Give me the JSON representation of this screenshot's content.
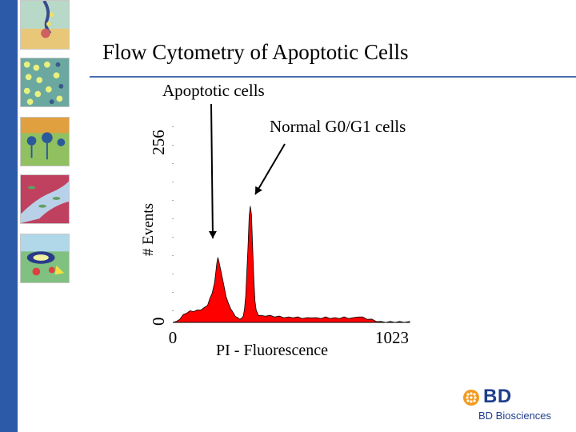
{
  "slide": {
    "title": "Flow Cytometry of Apoptotic Cells"
  },
  "annotations": {
    "apoptotic": "Apoptotic cells",
    "normal": "Normal G0/G1 cells"
  },
  "brand": {
    "name": "BD",
    "subtitle": "BD Biosciences",
    "color": "#1f3e8c"
  },
  "colors": {
    "sidebar": "#2d5aa8",
    "fill": "#ff0000",
    "rule": "#4a6fb0"
  },
  "chart_data": {
    "type": "area",
    "title": "",
    "xlabel": "PI - Fluorescence",
    "ylabel": "# Events",
    "xlim": [
      0,
      1023
    ],
    "ylim": [
      0,
      256
    ],
    "x_ticks": [
      "0",
      "1023"
    ],
    "y_ticks": [
      "0",
      "256"
    ],
    "grid": false,
    "series": [
      {
        "values_x": [
          0,
          15,
          30,
          45,
          60,
          75,
          90,
          105,
          120,
          135,
          150,
          160,
          170,
          180,
          185,
          190,
          195,
          200,
          210,
          220,
          230,
          240,
          250,
          260,
          270,
          280,
          290,
          300,
          305,
          310,
          315,
          320,
          325,
          330,
          335,
          340,
          345,
          350,
          355,
          360,
          370,
          380,
          400,
          420,
          440,
          460,
          480,
          500,
          520,
          540,
          560,
          580,
          600,
          620,
          640,
          660,
          680,
          700,
          720,
          740,
          760,
          780,
          800,
          820,
          840,
          860,
          880,
          900,
          920,
          940,
          960,
          980,
          1000,
          1023
        ],
        "values_y": [
          0,
          0,
          4,
          9,
          12,
          14,
          14,
          15,
          16,
          18,
          22,
          30,
          38,
          50,
          63,
          76,
          85,
          77,
          64,
          48,
          34,
          24,
          18,
          12,
          8,
          5,
          4,
          5,
          9,
          17,
          34,
          66,
          98,
          138,
          152,
          139,
          98,
          55,
          28,
          15,
          9,
          8,
          8,
          8,
          7,
          7,
          6,
          6,
          6,
          6,
          5,
          5,
          6,
          5,
          5,
          6,
          5,
          5,
          5,
          6,
          5,
          5,
          7,
          6,
          4,
          3,
          1,
          0,
          0,
          0,
          0,
          0,
          0,
          0
        ]
      }
    ],
    "annotations": [
      {
        "text": "Apoptotic cells",
        "x": 175,
        "y": 85
      },
      {
        "text": "Normal G0/G1 cells",
        "x": 336,
        "y": 152
      }
    ]
  }
}
